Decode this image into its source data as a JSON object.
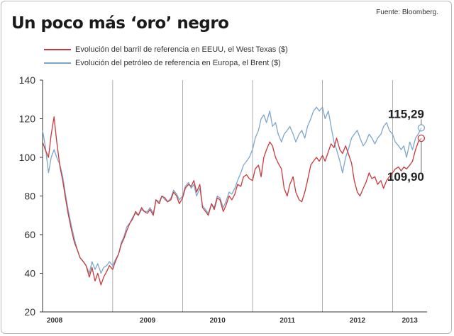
{
  "title": "Un poco más ‘oro’ negro",
  "source": "Fuente: Bloomberg.",
  "colors": {
    "wti": "#c8393b",
    "brent": "#7ea6cb",
    "axis": "#333333",
    "grid": "#999999"
  },
  "chart_data": {
    "type": "line",
    "title": "Un poco más ‘oro’ negro",
    "xlabel": "",
    "ylabel": "",
    "ylim": [
      20,
      140
    ],
    "yticks": [
      20,
      40,
      60,
      80,
      100,
      120,
      140
    ],
    "xlim": [
      "2008-01-01",
      "2013-06-30"
    ],
    "xtick_labels": [
      "2008",
      "2009",
      "2010",
      "2011",
      "2012",
      "2013"
    ],
    "grid": "vertical year separators",
    "legend": "top-left",
    "annotations": [
      {
        "text": "115,29",
        "series": "brent",
        "value": 115.29,
        "date": "2013-05-31"
      },
      {
        "text": "109,90",
        "series": "wti",
        "value": 109.9,
        "date": "2013-05-31"
      }
    ],
    "series": [
      {
        "key": "wti",
        "name": "Evolución del barril de referencia en EEUU, el West Texas ($)",
        "x": [
          "2008-01-01",
          "2008-01-15",
          "2008-02-01",
          "2008-02-15",
          "2008-03-01",
          "2008-03-15",
          "2008-04-01",
          "2008-04-15",
          "2008-05-01",
          "2008-05-15",
          "2008-06-01",
          "2008-06-15",
          "2008-07-01",
          "2008-07-15",
          "2008-08-01",
          "2008-08-15",
          "2008-09-01",
          "2008-09-15",
          "2008-10-01",
          "2008-10-15",
          "2008-11-01",
          "2008-11-15",
          "2008-12-01",
          "2008-12-15",
          "2009-01-01",
          "2009-01-15",
          "2009-02-01",
          "2009-02-15",
          "2009-03-01",
          "2009-03-15",
          "2009-04-01",
          "2009-04-15",
          "2009-05-01",
          "2009-05-15",
          "2009-06-01",
          "2009-06-15",
          "2009-07-01",
          "2009-07-15",
          "2009-08-01",
          "2009-08-15",
          "2009-09-01",
          "2009-09-15",
          "2009-10-01",
          "2009-10-15",
          "2009-11-01",
          "2009-11-15",
          "2009-12-01",
          "2009-12-15",
          "2010-01-01",
          "2010-01-15",
          "2010-02-01",
          "2010-02-15",
          "2010-03-01",
          "2010-03-15",
          "2010-04-01",
          "2010-04-15",
          "2010-05-01",
          "2010-05-15",
          "2010-06-01",
          "2010-06-15",
          "2010-07-01",
          "2010-07-15",
          "2010-08-01",
          "2010-08-15",
          "2010-09-01",
          "2010-09-15",
          "2010-10-01",
          "2010-10-15",
          "2010-11-01",
          "2010-11-15",
          "2010-12-01",
          "2010-12-15",
          "2011-01-01",
          "2011-01-15",
          "2011-02-01",
          "2011-02-15",
          "2011-03-01",
          "2011-03-15",
          "2011-04-01",
          "2011-04-15",
          "2011-05-01",
          "2011-05-15",
          "2011-06-01",
          "2011-06-15",
          "2011-07-01",
          "2011-07-15",
          "2011-08-01",
          "2011-08-15",
          "2011-09-01",
          "2011-09-15",
          "2011-10-01",
          "2011-10-15",
          "2011-11-01",
          "2011-11-15",
          "2011-12-01",
          "2011-12-15",
          "2012-01-01",
          "2012-01-15",
          "2012-02-01",
          "2012-02-15",
          "2012-03-01",
          "2012-03-15",
          "2012-04-01",
          "2012-04-15",
          "2012-05-01",
          "2012-05-15",
          "2012-06-01",
          "2012-06-15",
          "2012-07-01",
          "2012-07-15",
          "2012-08-01",
          "2012-08-15",
          "2012-09-01",
          "2012-09-15",
          "2012-10-01",
          "2012-10-15",
          "2012-11-01",
          "2012-11-15",
          "2012-12-01",
          "2012-12-15",
          "2013-01-01",
          "2013-01-15",
          "2013-02-01",
          "2013-02-15",
          "2013-03-01",
          "2013-03-15",
          "2013-04-01",
          "2013-04-15",
          "2013-05-01",
          "2013-05-15",
          "2013-05-31"
        ],
        "values": [
          108,
          104,
          100,
          112,
          121,
          108,
          95,
          88,
          78,
          70,
          62,
          56,
          52,
          48,
          46,
          44,
          38,
          43,
          36,
          40,
          34,
          38,
          41,
          44,
          42,
          46,
          50,
          55,
          58,
          62,
          66,
          68,
          72,
          70,
          74,
          72,
          71,
          73,
          70,
          78,
          76,
          80,
          79,
          77,
          78,
          82,
          80,
          76,
          79,
          84,
          86,
          85,
          88,
          82,
          86,
          74,
          72,
          70,
          76,
          73,
          79,
          78,
          72,
          75,
          80,
          78,
          81,
          86,
          85,
          90,
          91,
          89,
          88,
          94,
          96,
          90,
          100,
          104,
          108,
          106,
          100,
          97,
          94,
          84,
          80,
          86,
          90,
          82,
          78,
          77,
          82,
          88,
          96,
          98,
          100,
          98,
          101,
          98,
          103,
          107,
          105,
          110,
          104,
          102,
          106,
          102,
          97,
          88,
          82,
          80,
          84,
          87,
          92,
          89,
          90,
          86,
          88,
          84,
          88,
          90,
          92,
          94,
          95,
          93,
          95,
          94,
          96,
          98,
          104,
          108,
          109.9
        ]
      },
      {
        "key": "brent",
        "name": "Evolución del petróleo de referencia en Europa, el Brent ($)",
        "x": [
          "2008-01-01",
          "2008-01-15",
          "2008-02-01",
          "2008-02-15",
          "2008-03-01",
          "2008-03-15",
          "2008-04-01",
          "2008-04-15",
          "2008-05-01",
          "2008-05-15",
          "2008-06-01",
          "2008-06-15",
          "2008-07-01",
          "2008-07-15",
          "2008-08-01",
          "2008-08-15",
          "2008-09-01",
          "2008-09-15",
          "2008-10-01",
          "2008-10-15",
          "2008-11-01",
          "2008-11-15",
          "2008-12-01",
          "2008-12-15",
          "2009-01-01",
          "2009-01-15",
          "2009-02-01",
          "2009-02-15",
          "2009-03-01",
          "2009-03-15",
          "2009-04-01",
          "2009-04-15",
          "2009-05-01",
          "2009-05-15",
          "2009-06-01",
          "2009-06-15",
          "2009-07-01",
          "2009-07-15",
          "2009-08-01",
          "2009-08-15",
          "2009-09-01",
          "2009-09-15",
          "2009-10-01",
          "2009-10-15",
          "2009-11-01",
          "2009-11-15",
          "2009-12-01",
          "2009-12-15",
          "2010-01-01",
          "2010-01-15",
          "2010-02-01",
          "2010-02-15",
          "2010-03-01",
          "2010-03-15",
          "2010-04-01",
          "2010-04-15",
          "2010-05-01",
          "2010-05-15",
          "2010-06-01",
          "2010-06-15",
          "2010-07-01",
          "2010-07-15",
          "2010-08-01",
          "2010-08-15",
          "2010-09-01",
          "2010-09-15",
          "2010-10-01",
          "2010-10-15",
          "2010-11-01",
          "2010-11-15",
          "2010-12-01",
          "2010-12-15",
          "2011-01-01",
          "2011-01-15",
          "2011-02-01",
          "2011-02-15",
          "2011-03-01",
          "2011-03-15",
          "2011-04-01",
          "2011-04-15",
          "2011-05-01",
          "2011-05-15",
          "2011-06-01",
          "2011-06-15",
          "2011-07-01",
          "2011-07-15",
          "2011-08-01",
          "2011-08-15",
          "2011-09-01",
          "2011-09-15",
          "2011-10-01",
          "2011-10-15",
          "2011-11-01",
          "2011-11-15",
          "2011-12-01",
          "2011-12-15",
          "2012-01-01",
          "2012-01-15",
          "2012-02-01",
          "2012-02-15",
          "2012-03-01",
          "2012-03-15",
          "2012-04-01",
          "2012-04-15",
          "2012-05-01",
          "2012-05-15",
          "2012-06-01",
          "2012-06-15",
          "2012-07-01",
          "2012-07-15",
          "2012-08-01",
          "2012-08-15",
          "2012-09-01",
          "2012-09-15",
          "2012-10-01",
          "2012-10-15",
          "2012-11-01",
          "2012-11-15",
          "2012-12-01",
          "2012-12-15",
          "2013-01-01",
          "2013-01-15",
          "2013-02-01",
          "2013-02-15",
          "2013-03-01",
          "2013-03-15",
          "2013-04-01",
          "2013-04-15",
          "2013-05-01",
          "2013-05-15",
          "2013-05-31"
        ],
        "values": [
          114,
          106,
          92,
          100,
          104,
          100,
          96,
          90,
          80,
          72,
          64,
          58,
          52,
          48,
          46,
          44,
          40,
          46,
          42,
          45,
          40,
          43,
          44,
          46,
          44,
          47,
          50,
          56,
          59,
          64,
          66,
          69,
          71,
          70,
          73,
          72,
          72,
          74,
          71,
          78,
          77,
          80,
          78,
          77,
          79,
          83,
          81,
          78,
          80,
          85,
          87,
          84,
          86,
          80,
          84,
          75,
          73,
          71,
          76,
          74,
          80,
          79,
          74,
          77,
          82,
          81,
          84,
          88,
          92,
          96,
          98,
          100,
          104,
          110,
          114,
          120,
          122,
          118,
          124,
          116,
          118,
          112,
          108,
          112,
          114,
          116,
          112,
          108,
          112,
          114,
          110,
          116,
          120,
          124,
          126,
          124,
          126,
          120,
          124,
          116,
          108,
          104,
          98,
          92,
          100,
          104,
          110,
          112,
          114,
          110,
          106,
          108,
          112,
          110,
          107,
          110,
          112,
          116,
          118,
          114,
          112,
          108,
          106,
          104,
          106,
          100,
          108,
          104,
          110,
          112,
          115.29
        ]
      }
    ]
  }
}
